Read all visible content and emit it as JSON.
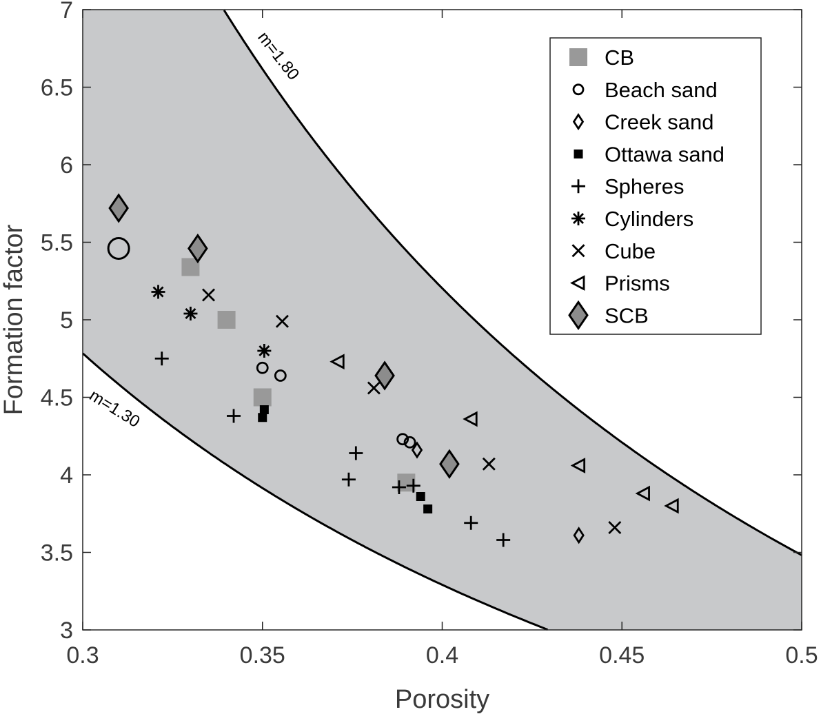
{
  "chart_data": {
    "type": "scatter",
    "xlabel": "Porosity",
    "ylabel": "Formation factor",
    "xlim": [
      0.3,
      0.5
    ],
    "ylim": [
      3,
      7
    ],
    "xticks": [
      "0.3",
      "0.35",
      "0.4",
      "0.45",
      "0.5"
    ],
    "yticks": [
      "3",
      "3.5",
      "4",
      "4.5",
      "5",
      "5.5",
      "6",
      "6.5",
      "7"
    ],
    "grid": false,
    "legend_position": "top-right",
    "band_color": "#c8c9cb",
    "curves": [
      {
        "name": "m=1.80",
        "m": 1.8
      },
      {
        "name": "m=1.30",
        "m": 1.3
      }
    ],
    "series": [
      {
        "name": "CB",
        "marker": "square-filled-large",
        "color": "#999999",
        "points": [
          [
            0.33,
            5.34
          ],
          [
            0.34,
            5.0
          ],
          [
            0.35,
            4.5
          ],
          [
            0.39,
            3.95
          ]
        ]
      },
      {
        "name": "Beach sand",
        "marker": "circle-open",
        "color": "#000000",
        "points": [
          [
            0.31,
            5.46
          ],
          [
            0.35,
            4.69
          ],
          [
            0.355,
            4.64
          ],
          [
            0.389,
            4.23
          ],
          [
            0.391,
            4.21
          ]
        ]
      },
      {
        "name": "Creek sand",
        "marker": "diamond-open",
        "color": "#000000",
        "points": [
          [
            0.393,
            4.16
          ],
          [
            0.438,
            3.61
          ]
        ]
      },
      {
        "name": "Ottawa sand",
        "marker": "square-filled",
        "color": "#000000",
        "points": [
          [
            0.35,
            4.37
          ],
          [
            0.3505,
            4.42
          ],
          [
            0.394,
            3.86
          ],
          [
            0.396,
            3.78
          ]
        ]
      },
      {
        "name": "Spheres",
        "marker": "plus",
        "color": "#000000",
        "points": [
          [
            0.322,
            4.75
          ],
          [
            0.342,
            4.38
          ],
          [
            0.376,
            4.14
          ],
          [
            0.374,
            3.97
          ],
          [
            0.388,
            3.92
          ],
          [
            0.392,
            3.93
          ],
          [
            0.408,
            3.69
          ],
          [
            0.417,
            3.58
          ]
        ]
      },
      {
        "name": "Cylinders",
        "marker": "asterisk",
        "color": "#000000",
        "points": [
          [
            0.321,
            5.18
          ],
          [
            0.33,
            5.04
          ],
          [
            0.3505,
            4.8
          ]
        ]
      },
      {
        "name": "Cube",
        "marker": "x",
        "color": "#000000",
        "points": [
          [
            0.335,
            5.16
          ],
          [
            0.3555,
            4.99
          ],
          [
            0.381,
            4.56
          ],
          [
            0.413,
            4.07
          ],
          [
            0.448,
            3.66
          ]
        ]
      },
      {
        "name": "Prisms",
        "marker": "triangle-left-open",
        "color": "#000000",
        "points": [
          [
            0.371,
            4.73
          ],
          [
            0.408,
            4.36
          ],
          [
            0.438,
            4.06
          ],
          [
            0.456,
            3.88
          ],
          [
            0.464,
            3.8
          ]
        ]
      },
      {
        "name": "SCB",
        "marker": "diamond-filled-large",
        "color": "#8c8c8c",
        "points": [
          [
            0.31,
            5.72
          ],
          [
            0.332,
            5.46
          ],
          [
            0.384,
            4.64
          ],
          [
            0.402,
            4.07
          ]
        ]
      }
    ]
  }
}
